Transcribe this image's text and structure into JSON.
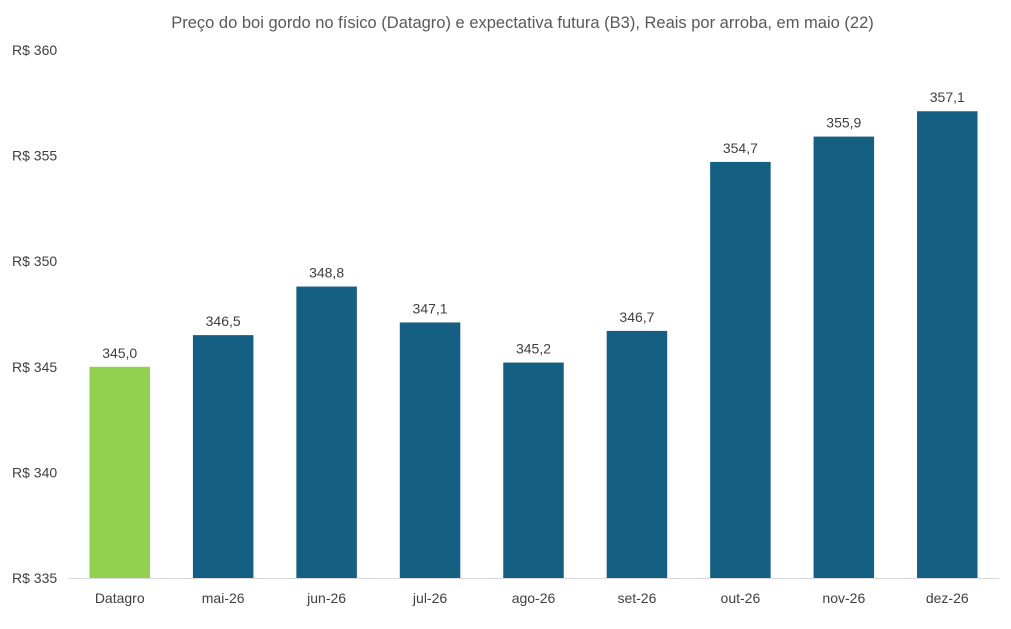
{
  "chart_data": {
    "type": "bar",
    "title": "Preço do boi gordo no físico (Datagro)  e expectativa futura (B3), Reais por arroba, em maio (22)",
    "categories": [
      "Datagro",
      "mai-26",
      "jun-26",
      "jul-26",
      "ago-26",
      "set-26",
      "out-26",
      "nov-26",
      "dez-26"
    ],
    "values": [
      345.0,
      346.5,
      348.8,
      347.1,
      345.2,
      346.7,
      354.7,
      355.9,
      357.1
    ],
    "data_labels": [
      "345,0",
      "346,5",
      "348,8",
      "347,1",
      "345,2",
      "346,7",
      "354,7",
      "355,9",
      "357,1"
    ],
    "ylim": [
      335,
      360
    ],
    "yticks": [
      335,
      340,
      345,
      350,
      355,
      360
    ],
    "ytick_labels": [
      "R$ 335",
      "R$ 340",
      "R$ 345",
      "R$ 350",
      "R$ 355",
      "R$ 360"
    ],
    "xlabel": "",
    "ylabel": "",
    "grid": false,
    "legend": "none",
    "colors": {
      "highlight": "#92D050",
      "default": "#155F82",
      "axis": "#D9D9D9",
      "text": "#404040"
    }
  }
}
